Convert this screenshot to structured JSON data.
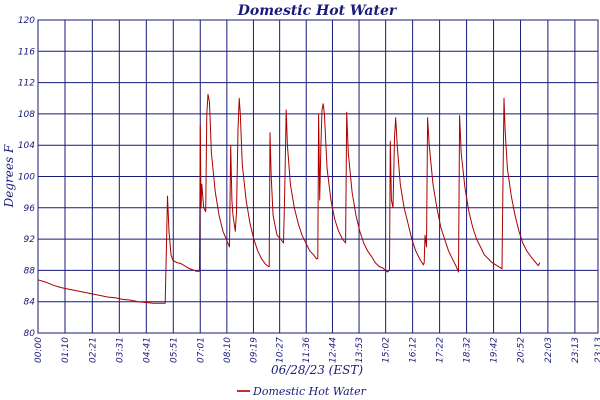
{
  "chart_data": {
    "type": "line",
    "title": "Domestic Hot Water",
    "xlabel": "06/28/23 (EST)",
    "ylabel": "Degrees F",
    "ylim": [
      80,
      120
    ],
    "yticks": [
      80,
      84,
      88,
      92,
      96,
      100,
      104,
      108,
      112,
      116,
      120
    ],
    "xlim": [
      0,
      1453
    ],
    "xticks": [
      {
        "t": 0,
        "label": "00:00"
      },
      {
        "t": 70,
        "label": "01:10"
      },
      {
        "t": 141,
        "label": "02:21"
      },
      {
        "t": 211,
        "label": "03:31"
      },
      {
        "t": 281,
        "label": "04:41"
      },
      {
        "t": 351,
        "label": "05:51"
      },
      {
        "t": 421,
        "label": "07:01"
      },
      {
        "t": 490,
        "label": "08:10"
      },
      {
        "t": 559,
        "label": "09:19"
      },
      {
        "t": 627,
        "label": "10:27"
      },
      {
        "t": 696,
        "label": "11:36"
      },
      {
        "t": 764,
        "label": "12:44"
      },
      {
        "t": 833,
        "label": "13:53"
      },
      {
        "t": 902,
        "label": "15:02"
      },
      {
        "t": 972,
        "label": "16:12"
      },
      {
        "t": 1042,
        "label": "17:22"
      },
      {
        "t": 1112,
        "label": "18:32"
      },
      {
        "t": 1182,
        "label": "19:42"
      },
      {
        "t": 1252,
        "label": "20:52"
      },
      {
        "t": 1323,
        "label": "22:03"
      },
      {
        "t": 1393,
        "label": "23:13"
      },
      {
        "t": 1453,
        "label": "23:13"
      }
    ],
    "grid": true,
    "legend_position": "bottom-center",
    "series": [
      {
        "name": "Domestic Hot Water",
        "color": "#aa0000",
        "points": [
          [
            0,
            86.8
          ],
          [
            20,
            86.5
          ],
          [
            40,
            86.1
          ],
          [
            60,
            85.8
          ],
          [
            80,
            85.6
          ],
          [
            100,
            85.4
          ],
          [
            120,
            85.2
          ],
          [
            140,
            85.0
          ],
          [
            160,
            84.8
          ],
          [
            180,
            84.6
          ],
          [
            200,
            84.5
          ],
          [
            220,
            84.3
          ],
          [
            240,
            84.2
          ],
          [
            260,
            84.0
          ],
          [
            280,
            83.9
          ],
          [
            300,
            83.8
          ],
          [
            320,
            83.8
          ],
          [
            330,
            83.8
          ],
          [
            336,
            97.5
          ],
          [
            340,
            93.0
          ],
          [
            345,
            90.0
          ],
          [
            350,
            89.3
          ],
          [
            360,
            89.0
          ],
          [
            370,
            88.9
          ],
          [
            380,
            88.6
          ],
          [
            390,
            88.3
          ],
          [
            400,
            88.1
          ],
          [
            410,
            87.9
          ],
          [
            419,
            87.9
          ],
          [
            421,
            106.5
          ],
          [
            423,
            96.0
          ],
          [
            425,
            99.0
          ],
          [
            430,
            96.0
          ],
          [
            435,
            95.5
          ],
          [
            438,
            108.0
          ],
          [
            441,
            110.5
          ],
          [
            445,
            109.5
          ],
          [
            450,
            103.0
          ],
          [
            460,
            98.0
          ],
          [
            470,
            95.0
          ],
          [
            480,
            93.0
          ],
          [
            490,
            91.8
          ],
          [
            497,
            91.0
          ],
          [
            500,
            104.0
          ],
          [
            503,
            97.0
          ],
          [
            506,
            95.0
          ],
          [
            512,
            93.0
          ],
          [
            515,
            95.5
          ],
          [
            519,
            106.0
          ],
          [
            522,
            110.0
          ],
          [
            525,
            108.0
          ],
          [
            530,
            101.5
          ],
          [
            540,
            97.0
          ],
          [
            550,
            94.0
          ],
          [
            560,
            92.0
          ],
          [
            570,
            90.5
          ],
          [
            580,
            89.5
          ],
          [
            590,
            88.8
          ],
          [
            598,
            88.5
          ],
          [
            600,
            88.5
          ],
          [
            602,
            105.6
          ],
          [
            605,
            100.0
          ],
          [
            610,
            95.0
          ],
          [
            620,
            92.5
          ],
          [
            630,
            92.0
          ],
          [
            637,
            91.5
          ],
          [
            640,
            98.0
          ],
          [
            644,
            108.5
          ],
          [
            647,
            104.0
          ],
          [
            655,
            99.0
          ],
          [
            665,
            96.0
          ],
          [
            675,
            94.0
          ],
          [
            685,
            92.5
          ],
          [
            695,
            91.5
          ],
          [
            705,
            90.5
          ],
          [
            715,
            90.0
          ],
          [
            722,
            89.5
          ],
          [
            726,
            89.5
          ],
          [
            728,
            108.0
          ],
          [
            731,
            97.0
          ],
          [
            734,
            104.0
          ],
          [
            737,
            108.5
          ],
          [
            740,
            109.3
          ],
          [
            743,
            108.0
          ],
          [
            750,
            101.0
          ],
          [
            760,
            97.0
          ],
          [
            770,
            94.5
          ],
          [
            780,
            93.0
          ],
          [
            790,
            92.0
          ],
          [
            798,
            91.5
          ],
          [
            801,
            108.2
          ],
          [
            805,
            103.0
          ],
          [
            815,
            98.0
          ],
          [
            825,
            95.0
          ],
          [
            835,
            93.0
          ],
          [
            845,
            91.5
          ],
          [
            855,
            90.5
          ],
          [
            865,
            89.8
          ],
          [
            875,
            89.0
          ],
          [
            885,
            88.5
          ],
          [
            895,
            88.3
          ],
          [
            907,
            87.8
          ],
          [
            912,
            88.0
          ],
          [
            914,
            104.5
          ],
          [
            917,
            97.0
          ],
          [
            921,
            96.0
          ],
          [
            925,
            105.0
          ],
          [
            928,
            107.5
          ],
          [
            932,
            104.0
          ],
          [
            940,
            99.0
          ],
          [
            950,
            96.0
          ],
          [
            960,
            94.0
          ],
          [
            970,
            92.0
          ],
          [
            980,
            90.5
          ],
          [
            990,
            89.5
          ],
          [
            1000,
            88.7
          ],
          [
            1002,
            89.0
          ],
          [
            1004,
            92.5
          ],
          [
            1008,
            91.0
          ],
          [
            1011,
            107.5
          ],
          [
            1015,
            104.0
          ],
          [
            1025,
            99.0
          ],
          [
            1035,
            96.0
          ],
          [
            1045,
            93.5
          ],
          [
            1055,
            92.0
          ],
          [
            1065,
            90.5
          ],
          [
            1075,
            89.5
          ],
          [
            1085,
            88.5
          ],
          [
            1091,
            87.8
          ],
          [
            1094,
            107.8
          ],
          [
            1098,
            103.0
          ],
          [
            1108,
            98.5
          ],
          [
            1118,
            95.5
          ],
          [
            1128,
            93.5
          ],
          [
            1138,
            92.0
          ],
          [
            1148,
            91.0
          ],
          [
            1158,
            90.0
          ],
          [
            1168,
            89.5
          ],
          [
            1178,
            89.0
          ],
          [
            1188,
            88.7
          ],
          [
            1198,
            88.4
          ],
          [
            1204,
            88.2
          ],
          [
            1206,
            97.5
          ],
          [
            1209,
            110.0
          ],
          [
            1212,
            106.0
          ],
          [
            1218,
            101.0
          ],
          [
            1228,
            97.5
          ],
          [
            1238,
            95.0
          ],
          [
            1248,
            93.0
          ],
          [
            1258,
            91.5
          ],
          [
            1268,
            90.5
          ],
          [
            1278,
            89.8
          ],
          [
            1288,
            89.2
          ],
          [
            1298,
            88.6
          ],
          [
            1302,
            89.0
          ]
        ]
      }
    ]
  }
}
